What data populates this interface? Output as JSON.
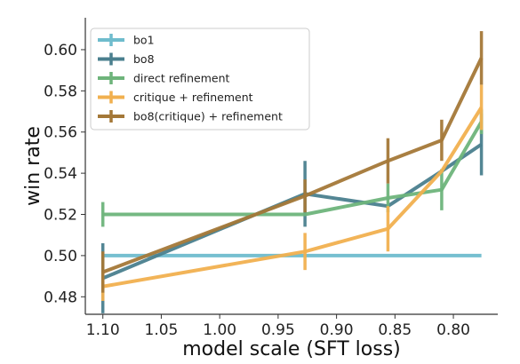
{
  "chart_data": {
    "type": "line",
    "title": "",
    "xlabel": "model scale (SFT loss)",
    "ylabel": "win rate",
    "x_reversed": true,
    "xlim": [
      1.115,
      0.762
    ],
    "ylim": [
      0.4715,
      0.6155
    ],
    "xticks": [
      1.1,
      1.05,
      1.0,
      0.95,
      0.9,
      0.85,
      0.8
    ],
    "xtick_labels": [
      "1.10",
      "1.05",
      "1.00",
      "0.95",
      "0.90",
      "0.85",
      "0.80"
    ],
    "yticks": [
      0.48,
      0.5,
      0.52,
      0.54,
      0.56,
      0.58,
      0.6
    ],
    "ytick_labels": [
      "0.48",
      "0.50",
      "0.52",
      "0.54",
      "0.56",
      "0.58",
      "0.60"
    ],
    "grid": false,
    "legend_position": "upper-left",
    "x": [
      1.1,
      0.927,
      0.856,
      0.81,
      0.776
    ],
    "series": [
      {
        "name": "bo1",
        "color": "#6fbccd",
        "values": [
          0.5,
          0.5,
          0.5,
          0.5,
          0.5
        ],
        "errors": [
          null,
          null,
          null,
          null,
          null
        ]
      },
      {
        "name": "bo8",
        "color": "#4a7f8e",
        "values": [
          0.489,
          0.53,
          0.524,
          0.541,
          0.554
        ],
        "errors": [
          0.017,
          0.016,
          null,
          null,
          0.015
        ]
      },
      {
        "name": "direct refinement",
        "color": "#6eb47b",
        "values": [
          0.52,
          0.52,
          0.528,
          0.532,
          0.565
        ],
        "errors": [
          0.006,
          null,
          0.007,
          0.01,
          0.006
        ]
      },
      {
        "name": "critique + refinement",
        "color": "#f1b04f",
        "values": [
          0.485,
          0.502,
          0.513,
          0.541,
          0.572
        ],
        "errors": [
          0.007,
          0.009,
          0.011,
          null,
          0.011
        ]
      },
      {
        "name": "bo8(critique) + refinement",
        "color": "#a47838",
        "values": [
          0.492,
          0.529,
          0.546,
          0.556,
          0.596
        ],
        "errors": [
          0.01,
          0.008,
          0.011,
          0.01,
          0.013
        ]
      }
    ]
  }
}
